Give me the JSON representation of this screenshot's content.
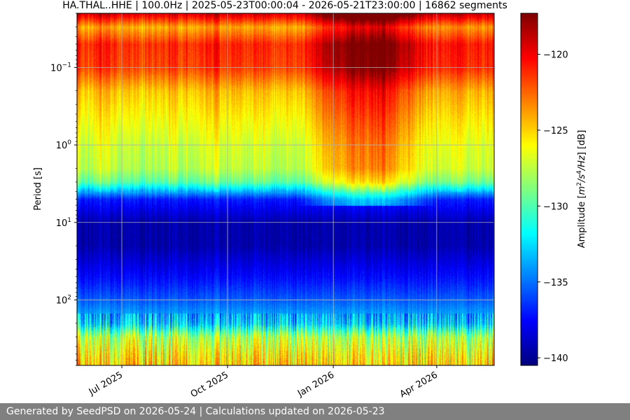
{
  "footer": {
    "text": "Generated by SeedPSD on 2026-05-24 | Calculations updated on 2026-05-23"
  },
  "chart_data": {
    "type": "heatmap",
    "title": "HA.THAL..HHE | 100.0Hz | 2025-05-23T00:00:04 - 2026-05-21T23:00:00 | 16862 segments",
    "ylabel": "Period [s]",
    "y_scale": "log",
    "y_inverted": true,
    "ylim": [
      0.02,
      700
    ],
    "y_ticks": [
      {
        "value": 0.1,
        "base": "10",
        "exp": "−1"
      },
      {
        "value": 1,
        "base": "10",
        "exp": "0"
      },
      {
        "value": 10,
        "base": "10",
        "exp": "1"
      },
      {
        "value": 100,
        "base": "10",
        "exp": "2"
      }
    ],
    "x_start": "2025-05-23",
    "x_end": "2026-05-21",
    "x_ticks": [
      {
        "date": "2025-07-01",
        "label": "Jul 2025"
      },
      {
        "date": "2025-10-01",
        "label": "Oct 2025"
      },
      {
        "date": "2026-01-01",
        "label": "Jan 2026"
      },
      {
        "date": "2026-04-01",
        "label": "Apr 2026"
      }
    ],
    "grid": true,
    "colormap": "jet",
    "colorbar": {
      "label_parts": [
        "Amplitude [",
        "m",
        "2",
        "/s",
        "4",
        "/Hz",
        "] [dB]"
      ],
      "range": [
        -140.5,
        -117.3
      ],
      "ticks": [
        {
          "value": -120,
          "label": "−120"
        },
        {
          "value": -125,
          "label": "−125"
        },
        {
          "value": -130,
          "label": "−130"
        },
        {
          "value": -135,
          "label": "−135"
        },
        {
          "value": -140,
          "label": "−140"
        }
      ]
    },
    "amplitude_profile_by_period": [
      {
        "period": 0.02,
        "db": -119
      },
      {
        "period": 0.03,
        "db": -124
      },
      {
        "period": 0.05,
        "db": -121
      },
      {
        "period": 0.1,
        "db": -121.5
      },
      {
        "period": 0.2,
        "db": -124.5
      },
      {
        "period": 0.5,
        "db": -126
      },
      {
        "period": 1,
        "db": -127
      },
      {
        "period": 2,
        "db": -127.5
      },
      {
        "period": 3,
        "db": -129.5
      },
      {
        "period": 5,
        "db": -137
      },
      {
        "period": 10,
        "db": -139.5
      },
      {
        "period": 20,
        "db": -139.5
      },
      {
        "period": 50,
        "db": -137.5
      },
      {
        "period": 100,
        "db": -135.5
      },
      {
        "period": 200,
        "db": -133
      },
      {
        "period": 300,
        "db": -128
      },
      {
        "period": 500,
        "db": -126
      },
      {
        "period": 700,
        "db": -125
      }
    ],
    "seasonal_peak": {
      "start": "2025-12-01",
      "end": "2026-04-01",
      "db_increase": 4
    }
  }
}
